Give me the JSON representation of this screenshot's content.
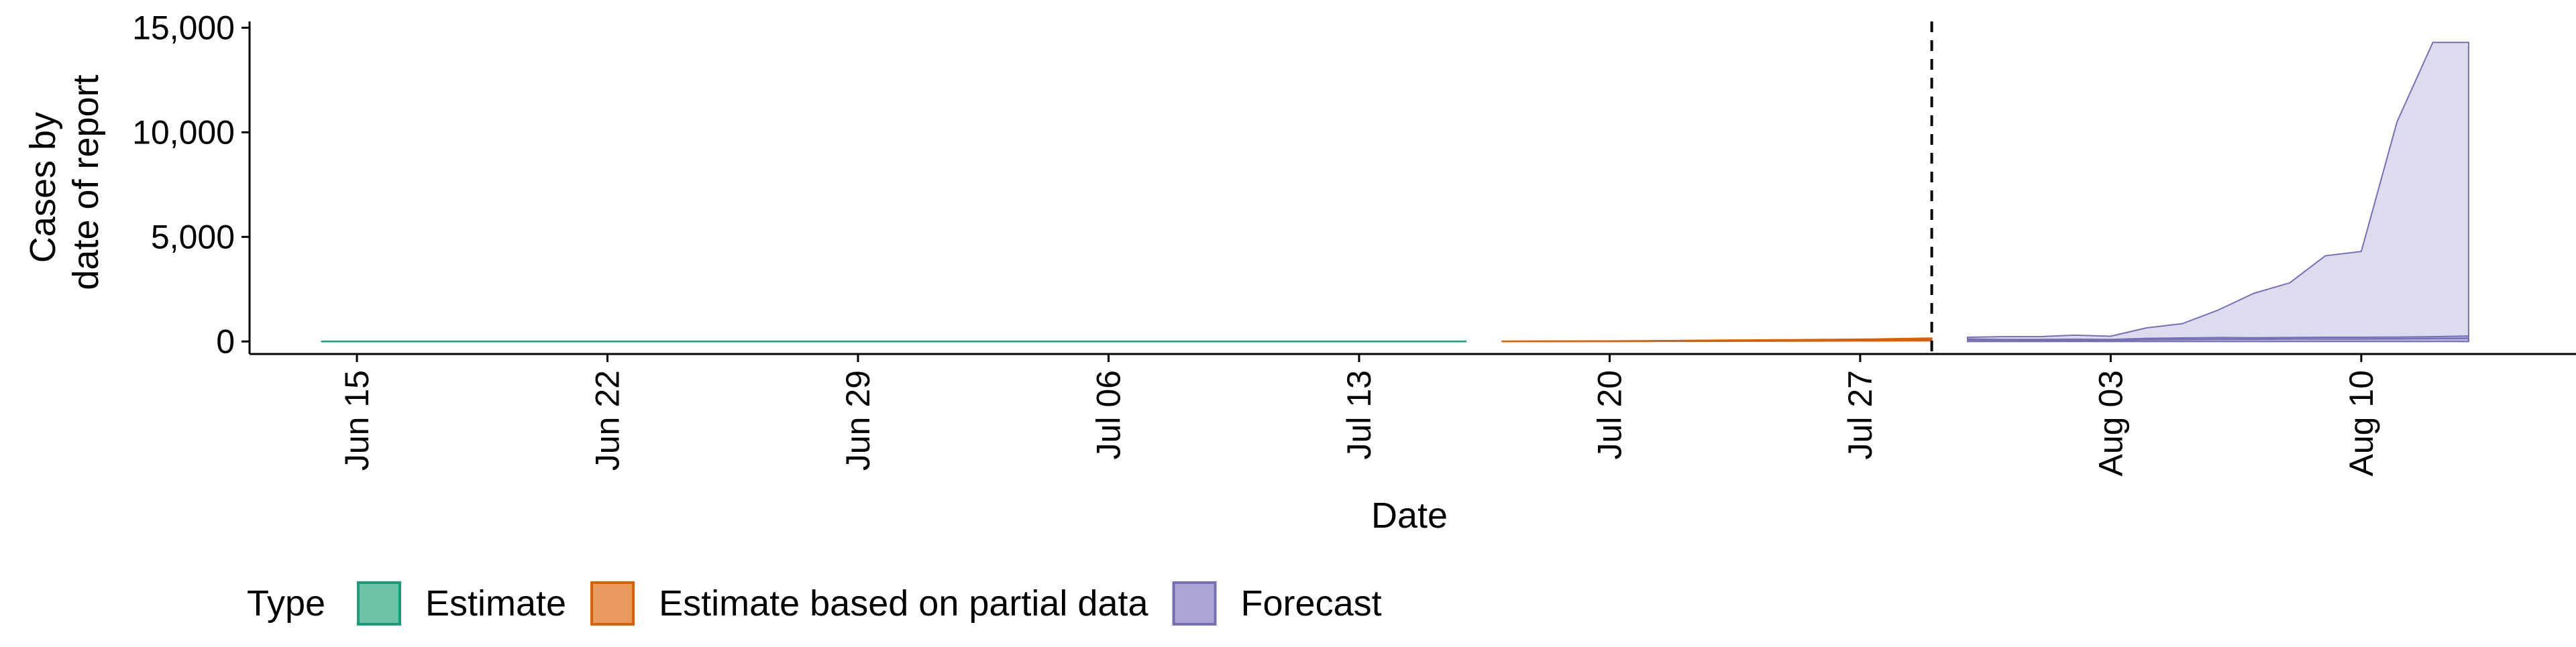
{
  "chart_data": {
    "type": "area",
    "title": "",
    "xlabel": "Date",
    "ylabel_lines": [
      "Cases by",
      "date of report"
    ],
    "x_ticks": [
      "2020-06-15",
      "2020-06-22",
      "2020-06-29",
      "2020-07-06",
      "2020-07-13",
      "2020-07-20",
      "2020-07-27",
      "2020-08-03",
      "2020-08-10"
    ],
    "x_tick_labels": [
      "Jun 15",
      "Jun 22",
      "Jun 29",
      "Jul 06",
      "Jul 13",
      "Jul 20",
      "Jul 27",
      "Aug 03",
      "Aug 10"
    ],
    "xlim": [
      "2020-06-12",
      "2020-08-16"
    ],
    "y_ticks": [
      0,
      5000,
      10000,
      15000
    ],
    "y_tick_labels": [
      "0",
      "5,000",
      "10,000",
      "15,000"
    ],
    "ylim": [
      -600,
      15300
    ],
    "grid": false,
    "vline": {
      "date": "2020-07-29",
      "style": "dashed",
      "color": "#000000"
    },
    "legend": {
      "title": "Type",
      "position": "bottom-left",
      "items": [
        {
          "label": "Estimate",
          "fill": "#6dc2a5",
          "stroke": "#1b9e77"
        },
        {
          "label": "Estimate based on partial data",
          "fill": "#e89a5e",
          "stroke": "#d95f02"
        },
        {
          "label": "Forecast",
          "fill": "#aaa5d4",
          "stroke": "#7570b3"
        }
      ]
    },
    "series": [
      {
        "name": "Estimate",
        "color": "#1b9e77",
        "fill": "#6dc2a5",
        "x": [
          "2020-06-14",
          "2020-06-20",
          "2020-06-26",
          "2020-07-02",
          "2020-07-08",
          "2020-07-12",
          "2020-07-16"
        ],
        "lower": [
          0,
          0,
          0,
          0,
          0,
          0,
          0
        ],
        "upper": [
          0,
          0,
          0,
          0,
          0,
          0,
          0
        ],
        "median": [
          0,
          0,
          0,
          0,
          0,
          0,
          0
        ]
      },
      {
        "name": "Estimate based on partial data",
        "color": "#d95f02",
        "fill": "#e89a5e",
        "x": [
          "2020-07-17",
          "2020-07-19",
          "2020-07-21",
          "2020-07-23",
          "2020-07-25",
          "2020-07-27",
          "2020-07-29"
        ],
        "lower": [
          0,
          0,
          5,
          10,
          15,
          25,
          35
        ],
        "upper": [
          10,
          15,
          30,
          60,
          80,
          110,
          160
        ],
        "median": [
          5,
          8,
          15,
          30,
          45,
          60,
          90
        ]
      },
      {
        "name": "Forecast",
        "color": "#7570b3",
        "fill": "#aaa5d4",
        "x": [
          "2020-07-30",
          "2020-07-31",
          "2020-08-01",
          "2020-08-02",
          "2020-08-03",
          "2020-08-04",
          "2020-08-05",
          "2020-08-06",
          "2020-08-07",
          "2020-08-08",
          "2020-08-09",
          "2020-08-10",
          "2020-08-11",
          "2020-08-12",
          "2020-08-13"
        ],
        "lower": [
          0,
          0,
          0,
          0,
          0,
          0,
          0,
          0,
          0,
          0,
          0,
          0,
          0,
          0,
          0
        ],
        "upper": [
          200,
          230,
          230,
          300,
          250,
          650,
          850,
          1500,
          2300,
          2800,
          4100,
          4300,
          10500,
          14300,
          14300
        ],
        "inner_upper": [
          120,
          100,
          100,
          110,
          100,
          150,
          170,
          190,
          180,
          190,
          200,
          200,
          210,
          230,
          260
        ],
        "median": [
          80,
          70,
          60,
          70,
          60,
          90,
          100,
          110,
          110,
          120,
          120,
          120,
          130,
          140,
          150
        ]
      }
    ]
  }
}
